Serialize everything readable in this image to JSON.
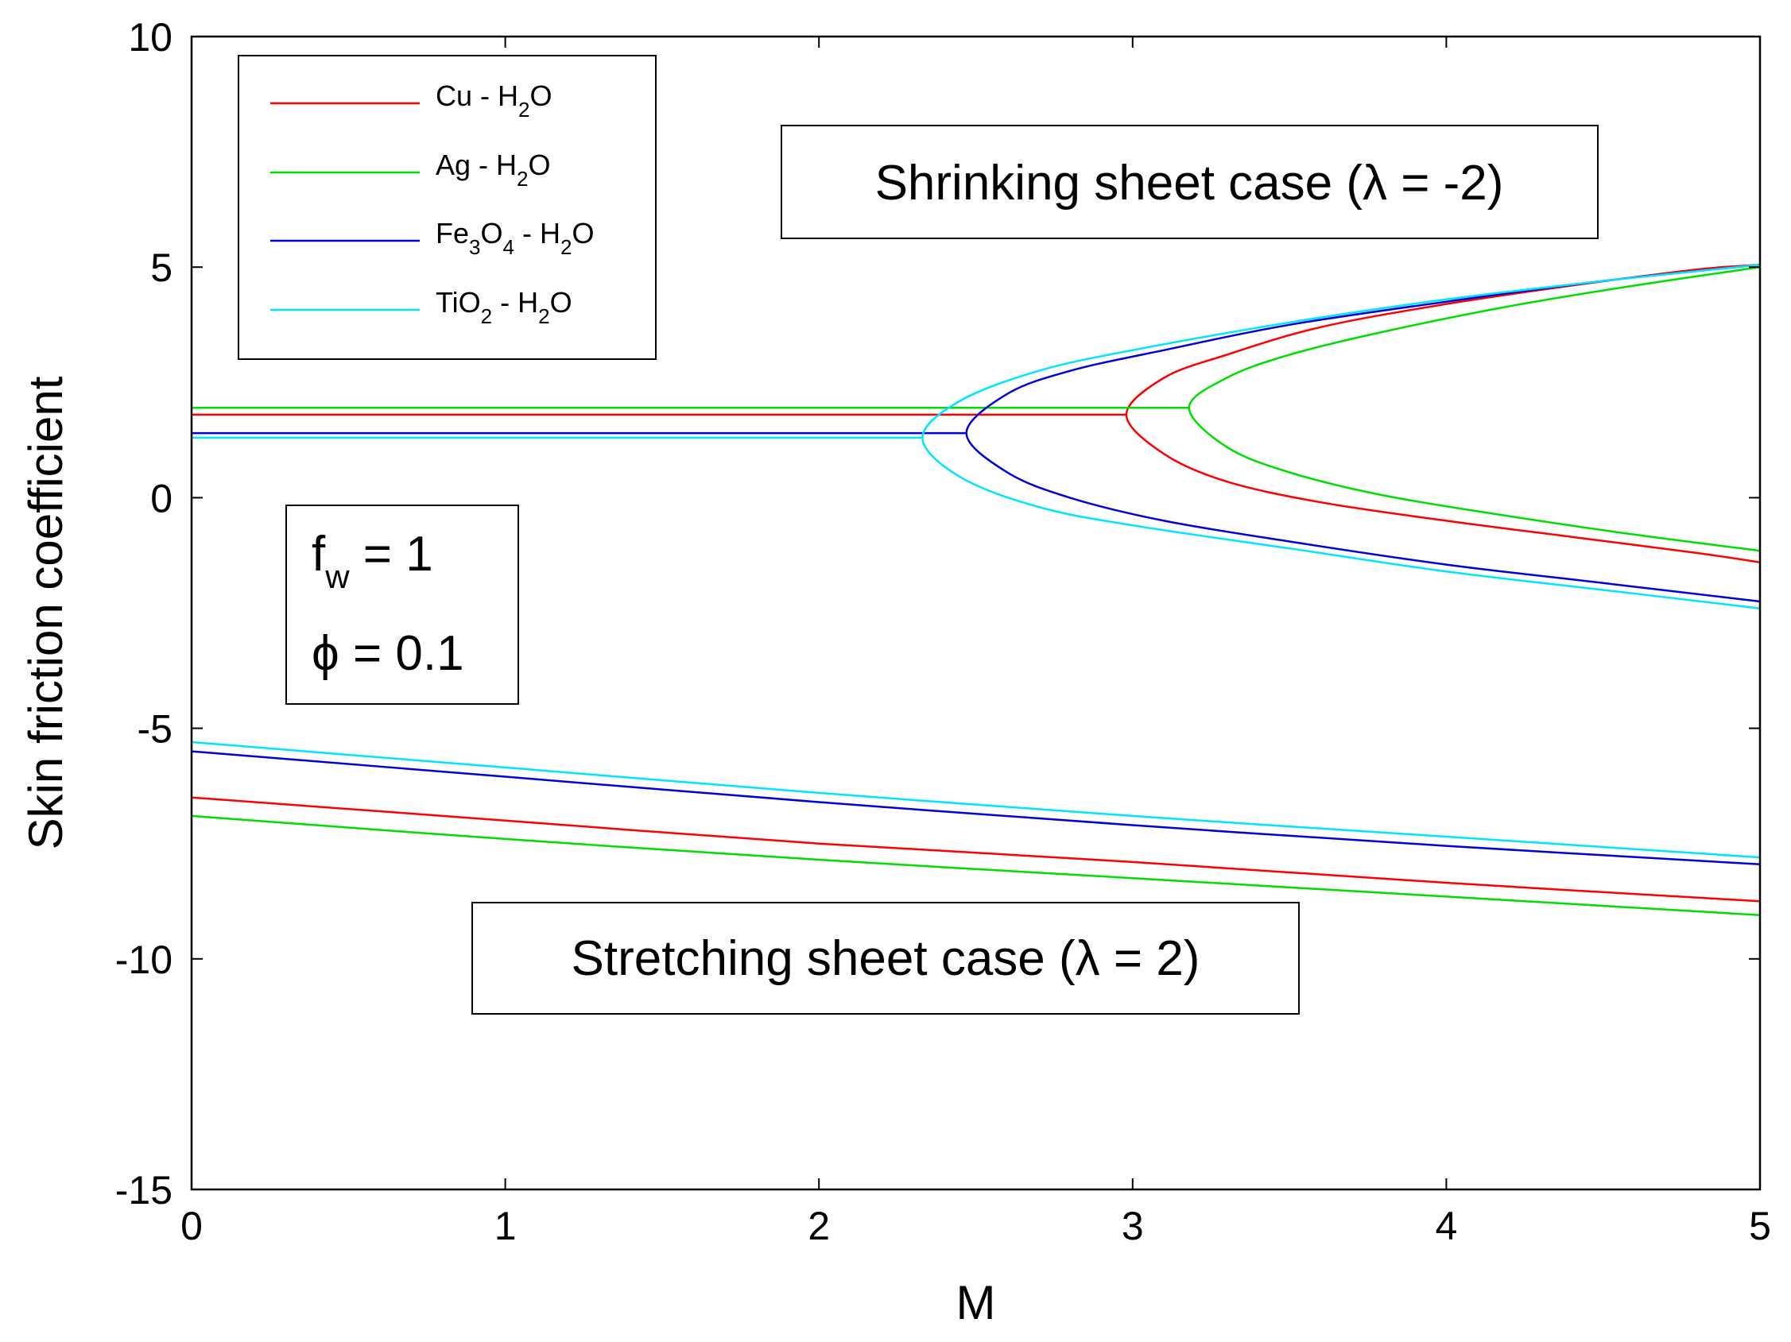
{
  "chart_data": {
    "type": "line",
    "xlabel": "M",
    "ylabel": "Skin friction coefficient",
    "xlim": [
      0,
      5
    ],
    "ylim": [
      -15,
      10
    ],
    "xticks": [
      "0",
      "1",
      "2",
      "3",
      "4",
      "5"
    ],
    "yticks": [
      "-15",
      "-10",
      "-5",
      "0",
      "5",
      "10"
    ],
    "grid": false,
    "legend_position": "top-left",
    "series": [
      {
        "name": "Cu - H2O",
        "legend": {
          "a": "Cu - H",
          "b": "2",
          "c": "O"
        },
        "color": "#ff0000",
        "shrinking_upper": {
          "x": [
            0,
            2.98,
            3.1,
            3.3,
            3.6,
            4.0,
            4.4,
            4.8,
            5.0
          ],
          "y": [
            1.8,
            1.8,
            2.6,
            3.1,
            3.7,
            4.2,
            4.6,
            4.95,
            5.05
          ]
        },
        "shrinking_lower": {
          "x": [
            2.98,
            3.1,
            3.3,
            3.6,
            4.0,
            4.4,
            4.8,
            5.0
          ],
          "y": [
            1.8,
            0.95,
            0.35,
            -0.1,
            -0.5,
            -0.85,
            -1.2,
            -1.4
          ]
        },
        "stretching": {
          "x": [
            0,
            1,
            2,
            3,
            4,
            5
          ],
          "y": [
            -6.5,
            -7.0,
            -7.5,
            -7.9,
            -8.35,
            -8.75
          ]
        }
      },
      {
        "name": "Ag - H2O",
        "legend": {
          "a": "Ag - H",
          "b": "2",
          "c": "O"
        },
        "color": "#00dd00",
        "shrinking_upper": {
          "x": [
            0,
            3.18,
            3.3,
            3.5,
            3.8,
            4.2,
            4.6,
            5.0
          ],
          "y": [
            1.95,
            1.95,
            2.6,
            3.1,
            3.6,
            4.15,
            4.6,
            5.0
          ]
        },
        "shrinking_lower": {
          "x": [
            3.18,
            3.3,
            3.5,
            3.8,
            4.2,
            4.6,
            5.0
          ],
          "y": [
            1.95,
            1.1,
            0.55,
            0.05,
            -0.4,
            -0.8,
            -1.15
          ]
        },
        "stretching": {
          "x": [
            0,
            1,
            2,
            3,
            4,
            5
          ],
          "y": [
            -6.9,
            -7.4,
            -7.85,
            -8.25,
            -8.65,
            -9.05
          ]
        }
      },
      {
        "name": "Fe3O4 - H2O",
        "legend": {
          "a": "Fe",
          "b": "3",
          "c": "O",
          "d": "4",
          "e": " - H",
          "f": "2",
          "g": "O"
        },
        "color": "#0000dd",
        "shrinking_upper": {
          "x": [
            0,
            2.47,
            2.6,
            2.8,
            3.1,
            3.5,
            4.0,
            4.5,
            5.0
          ],
          "y": [
            1.4,
            1.4,
            2.25,
            2.75,
            3.2,
            3.75,
            4.25,
            4.7,
            5.05
          ]
        },
        "shrinking_lower": {
          "x": [
            2.47,
            2.6,
            2.8,
            3.1,
            3.5,
            4.0,
            4.5,
            5.0
          ],
          "y": [
            1.4,
            0.55,
            0.0,
            -0.5,
            -0.95,
            -1.45,
            -1.85,
            -2.25
          ]
        },
        "stretching": {
          "x": [
            0,
            1,
            2,
            3,
            4,
            5
          ],
          "y": [
            -5.5,
            -6.05,
            -6.6,
            -7.1,
            -7.55,
            -7.95
          ]
        }
      },
      {
        "name": "TiO2 - H2O",
        "legend": {
          "a": "TiO",
          "b": "2",
          "c": " - H",
          "d": "2",
          "e": "O"
        },
        "color": "#00e5ff",
        "shrinking_upper": {
          "x": [
            0,
            2.33,
            2.45,
            2.7,
            3.0,
            3.5,
            4.0,
            4.5,
            5.0
          ],
          "y": [
            1.3,
            1.3,
            2.1,
            2.75,
            3.2,
            3.8,
            4.3,
            4.7,
            5.05
          ]
        },
        "shrinking_lower": {
          "x": [
            2.33,
            2.45,
            2.7,
            3.0,
            3.5,
            4.0,
            4.5,
            5.0
          ],
          "y": [
            1.3,
            0.45,
            -0.2,
            -0.6,
            -1.1,
            -1.6,
            -2.0,
            -2.4
          ]
        },
        "stretching": {
          "x": [
            0,
            1,
            2,
            3,
            4,
            5
          ],
          "y": [
            -5.3,
            -5.85,
            -6.4,
            -6.9,
            -7.35,
            -7.8
          ]
        }
      }
    ],
    "annotations": {
      "shrinking": "Shrinking sheet case (λ = -2)",
      "stretching": "Stretching sheet case (λ = 2)",
      "param_fw_main": "f",
      "param_fw_sub": "w",
      "param_fw_value": " = 1",
      "param_phi": "ϕ = 0.1"
    }
  }
}
